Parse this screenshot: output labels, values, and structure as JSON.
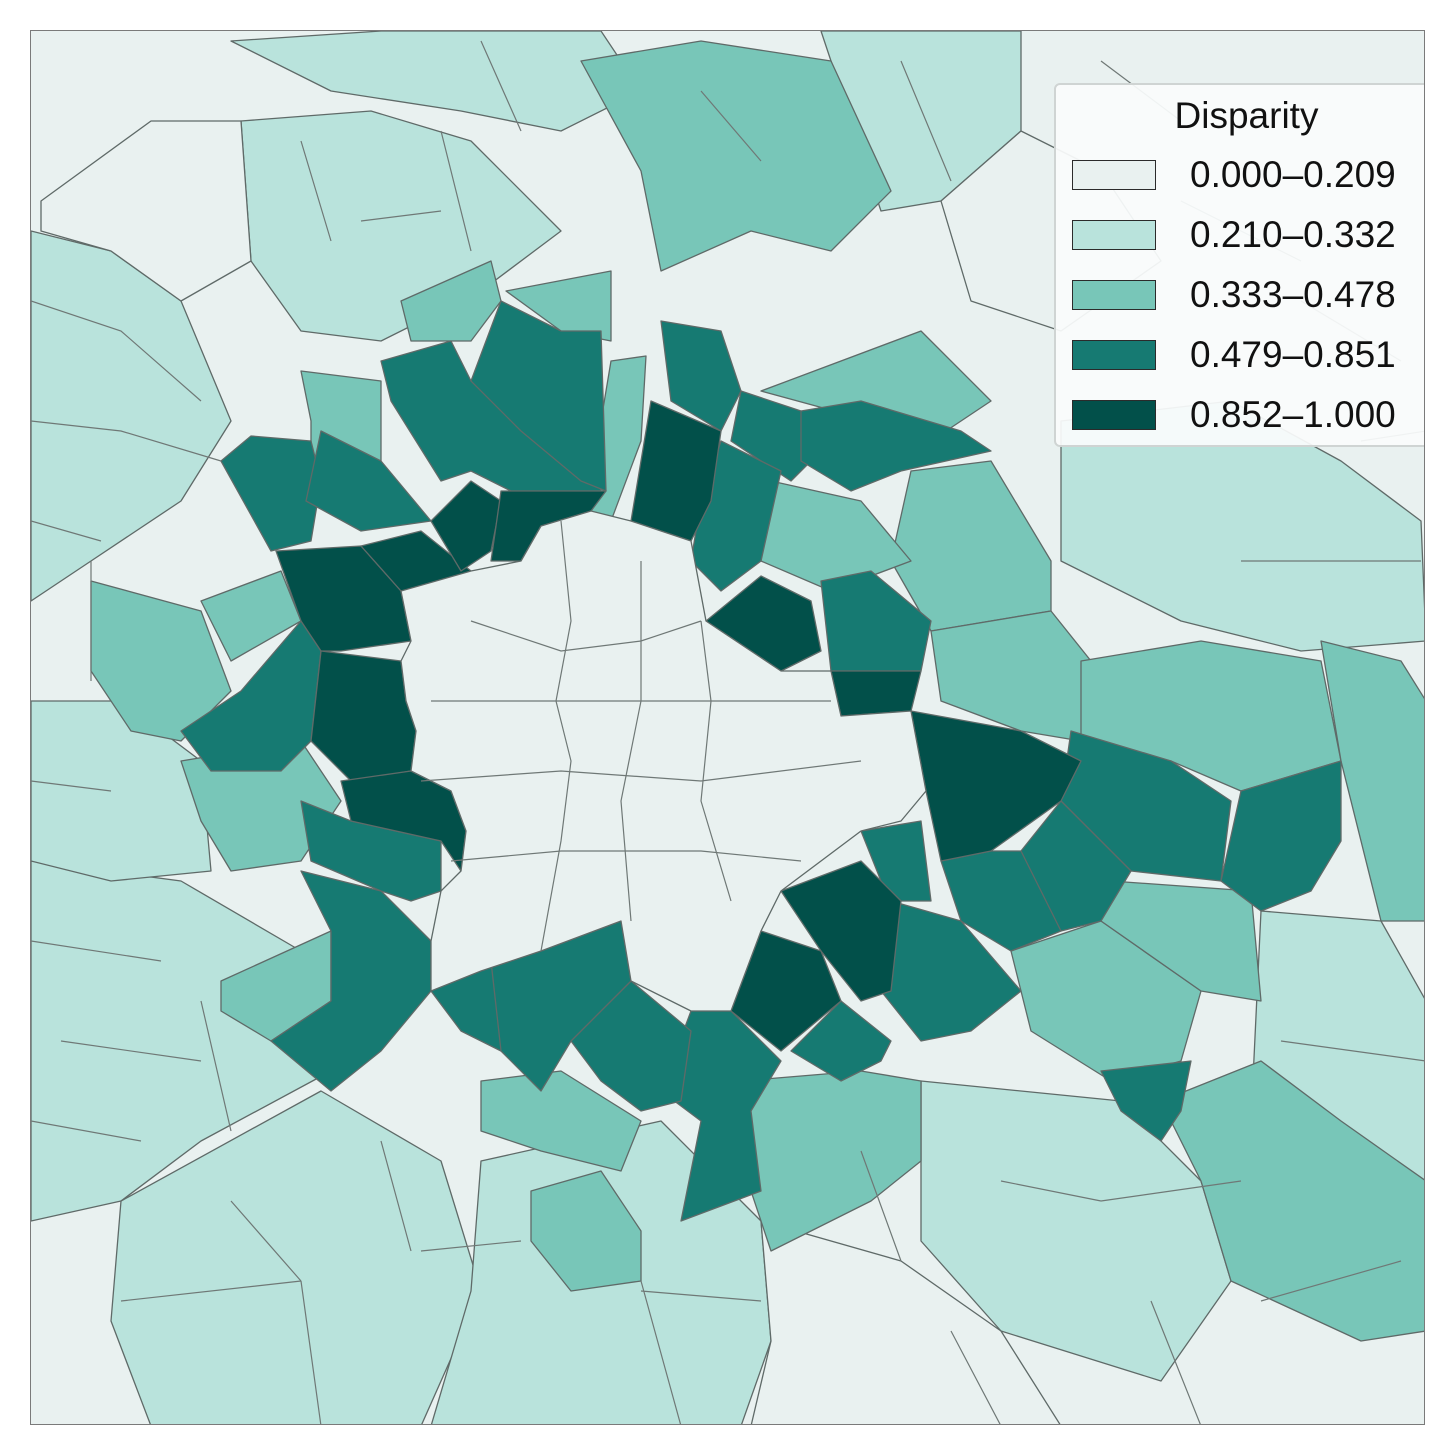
{
  "legend": {
    "title": "Disparity",
    "entries": [
      {
        "label": "0.000–0.209",
        "color": "#e9f1f0"
      },
      {
        "label": "0.210–0.332",
        "color": "#b9e3dc"
      },
      {
        "label": "0.333–0.478",
        "color": "#78c6b8"
      },
      {
        "label": "0.479–0.851",
        "color": "#167a72"
      },
      {
        "label": "0.852–1.000",
        "color": "#02504a"
      }
    ]
  },
  "palette": {
    "class0": "#e9f1f0",
    "class1": "#b9e3dc",
    "class2": "#78c6b8",
    "class3": "#167a72",
    "class4": "#02504a",
    "boundary": "#5f6a68"
  }
}
